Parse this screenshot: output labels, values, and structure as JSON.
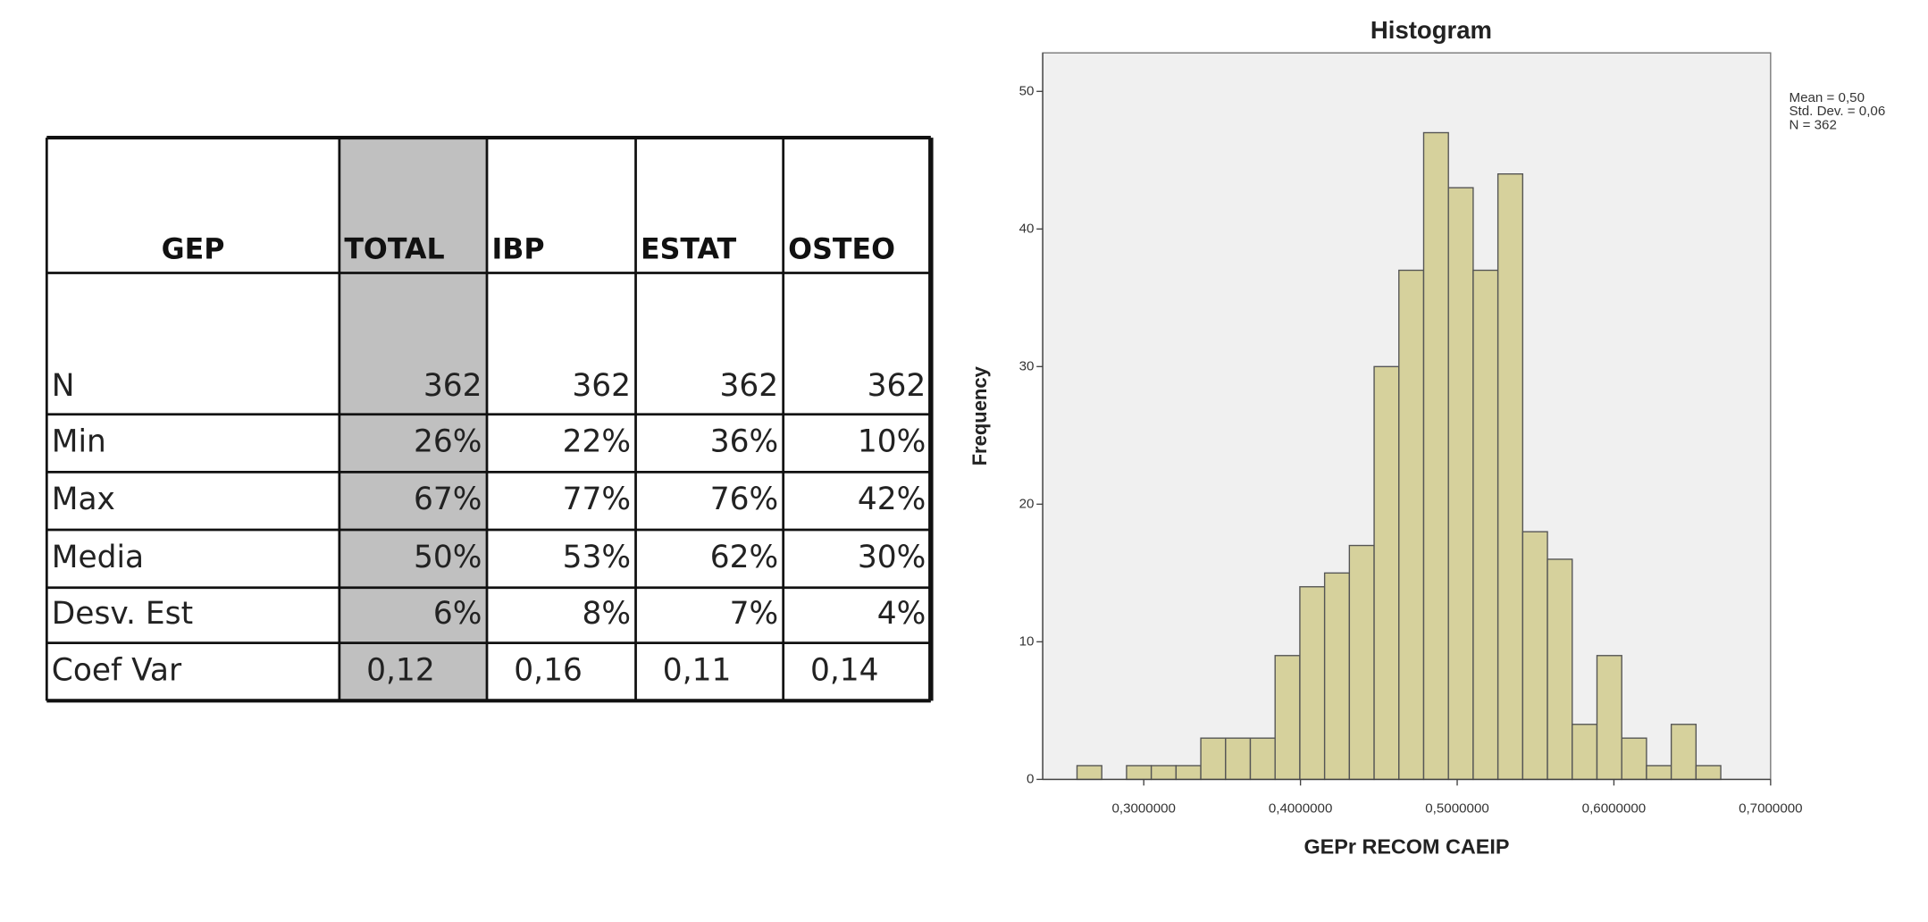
{
  "table": {
    "header": [
      "GEP",
      "TOTAL",
      "IBP",
      "ESTAT",
      "OSTEO"
    ],
    "rows": [
      [
        "N",
        "362",
        "362",
        "362",
        "362"
      ],
      [
        "Min",
        "26%",
        "22%",
        "36%",
        "10%"
      ],
      [
        "Max",
        "67%",
        "77%",
        "76%",
        "42%"
      ],
      [
        "Media",
        "50%",
        "53%",
        "62%",
        "30%"
      ],
      [
        "Desv. Est",
        "6%",
        "8%",
        "7%",
        "4%"
      ],
      [
        "Coef Var",
        "0,12",
        "0,16",
        "0,11",
        "0,14"
      ]
    ]
  },
  "chart_data": {
    "type": "histogram",
    "title": "Histogram",
    "x_label": "GEPr RECOM CAEIP",
    "y_label": "Frequency",
    "annotations": [
      "Mean = 0,50",
      "Std. Dev. = 0,06",
      "N = 362"
    ],
    "bins": [
      0.2574,
      0.2732,
      0.289,
      0.3048,
      0.3206,
      0.3364,
      0.3522,
      0.368,
      0.3838,
      0.3996,
      0.4154,
      0.4312,
      0.447,
      0.4628,
      0.4786,
      0.4944,
      0.5102,
      0.526,
      0.5418,
      0.5576,
      0.5734,
      0.5892,
      0.605,
      0.6208,
      0.6366,
      0.6524,
      0.6682
    ],
    "counts": [
      1,
      0,
      1,
      1,
      1,
      3,
      3,
      3,
      9,
      14,
      15,
      17,
      30,
      37,
      47,
      43,
      37,
      44,
      18,
      16,
      4,
      9,
      3,
      1,
      4,
      1
    ],
    "color": "#d6d19c",
    "xlim": [
      0.2355,
      0.7
    ],
    "ylim": [
      0,
      52.8
    ],
    "xticks": [
      {
        "value": 0.3,
        "label": "0,3000000"
      },
      {
        "value": 0.4,
        "label": "0,4000000"
      },
      {
        "value": 0.5,
        "label": "0,5000000"
      },
      {
        "value": 0.6,
        "label": "0,6000000"
      },
      {
        "value": 0.7,
        "label": "0,7000000"
      }
    ],
    "yticks": [
      0,
      10,
      20,
      30,
      40,
      50
    ]
  }
}
